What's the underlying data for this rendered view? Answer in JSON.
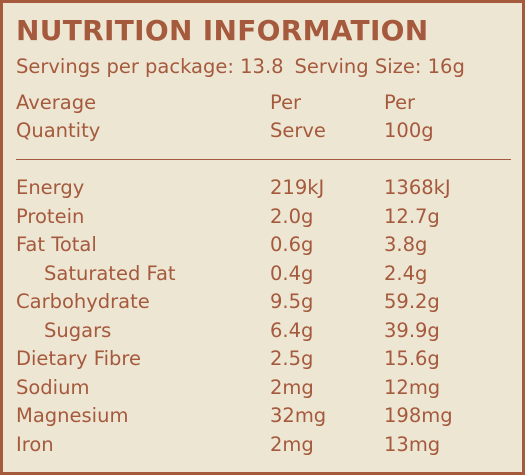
{
  "panel": {
    "title": "NUTRITION INFORMATION",
    "servings_per_package": "Servings per package: 13.8",
    "serving_size": "Serving Size: 16g"
  },
  "header": {
    "name_line1": "Average",
    "name_line2": "Quantity",
    "serve_line1": "Per",
    "serve_line2": "Serve",
    "per100_line1": "Per",
    "per100_line2": "100g"
  },
  "rows": [
    {
      "name": "Energy",
      "per_serve": "219kJ",
      "per_100g": "1368kJ",
      "indent": false
    },
    {
      "name": "Protein",
      "per_serve": "2.0g",
      "per_100g": "12.7g",
      "indent": false
    },
    {
      "name": "Fat Total",
      "per_serve": "0.6g",
      "per_100g": "3.8g",
      "indent": false
    },
    {
      "name": "Saturated Fat",
      "per_serve": "0.4g",
      "per_100g": "2.4g",
      "indent": true
    },
    {
      "name": "Carbohydrate",
      "per_serve": "9.5g",
      "per_100g": "59.2g",
      "indent": false
    },
    {
      "name": "Sugars",
      "per_serve": "6.4g",
      "per_100g": "39.9g",
      "indent": true
    },
    {
      "name": "Dietary Fibre",
      "per_serve": "2.5g",
      "per_100g": "15.6g",
      "indent": false
    },
    {
      "name": "Sodium",
      "per_serve": "2mg",
      "per_100g": "12mg",
      "indent": false
    },
    {
      "name": "Magnesium",
      "per_serve": "32mg",
      "per_100g": "198mg",
      "indent": false
    },
    {
      "name": "Iron",
      "per_serve": "2mg",
      "per_100g": "13mg",
      "indent": false
    }
  ],
  "colors": {
    "text": "#a5593d",
    "background": "#ede6d3",
    "border": "#a5593d"
  }
}
